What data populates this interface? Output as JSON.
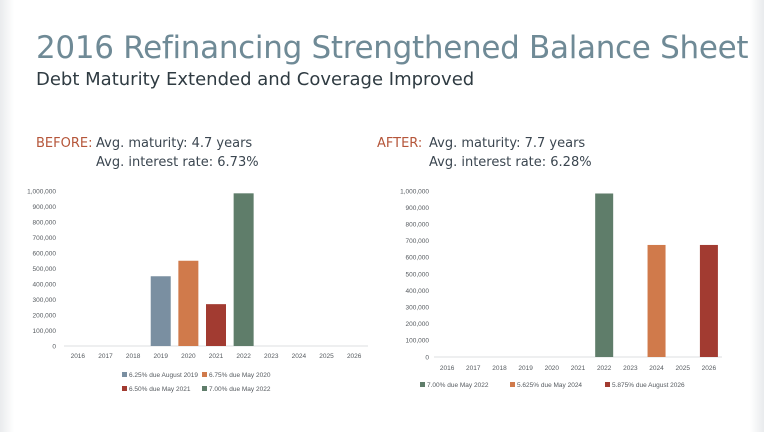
{
  "slide": {
    "title": "2016 Refinancing Strengthened Balance Sheet",
    "subtitle": "Debt Maturity Extended and Coverage Improved"
  },
  "before": {
    "label": "BEFORE:",
    "maturity": "Avg. maturity: 4.7 years",
    "rate": "Avg. interest rate: 6.73%"
  },
  "after": {
    "label": "AFTER:",
    "maturity": "Avg. maturity: 7.7 years",
    "rate": "Avg. interest rate: 6.28%"
  },
  "chart_data": [
    {
      "type": "bar",
      "title": "",
      "xlabel": "",
      "ylabel": "",
      "categories": [
        "2016",
        "2017",
        "2018",
        "2019",
        "2020",
        "2021",
        "2022",
        "2023",
        "2024",
        "2025",
        "2026"
      ],
      "ylim": [
        0,
        1000000
      ],
      "yticks": [
        "0",
        "100,000",
        "200,000",
        "300,000",
        "400,000",
        "500,000",
        "600,000",
        "700,000",
        "800,000",
        "900,000",
        "1,000,000"
      ],
      "grid": false,
      "legend": "bottom",
      "series": [
        {
          "name": "6.25% due August 2019",
          "category": "2019",
          "value": 450000,
          "color": "#7a8fa1"
        },
        {
          "name": "6.75% due May 2020",
          "category": "2020",
          "value": 550000,
          "color": "#d07a4b"
        },
        {
          "name": "6.50% due May 2021",
          "category": "2021",
          "value": 270000,
          "color": "#a23b31"
        },
        {
          "name": "7.00% due May 2022",
          "category": "2022",
          "value": 985000,
          "color": "#5f7d6a"
        }
      ]
    },
    {
      "type": "bar",
      "title": "",
      "xlabel": "",
      "ylabel": "",
      "categories": [
        "2016",
        "2017",
        "2018",
        "2019",
        "2020",
        "2021",
        "2022",
        "2023",
        "2024",
        "2025",
        "2026"
      ],
      "ylim": [
        0,
        1000000
      ],
      "yticks": [
        "0",
        "100,000",
        "200,000",
        "300,000",
        "400,000",
        "500,000",
        "600,000",
        "700,000",
        "800,000",
        "900,000",
        "1,000,000"
      ],
      "grid": false,
      "legend": "bottom",
      "series": [
        {
          "name": "7.00% due May 2022",
          "category": "2022",
          "value": 985000,
          "color": "#5f7d6a"
        },
        {
          "name": "5.625% due May 2024",
          "category": "2024",
          "value": 675000,
          "color": "#d07a4b"
        },
        {
          "name": "5.875% due August 2026",
          "category": "2026",
          "value": 675000,
          "color": "#a23b31"
        }
      ]
    }
  ]
}
